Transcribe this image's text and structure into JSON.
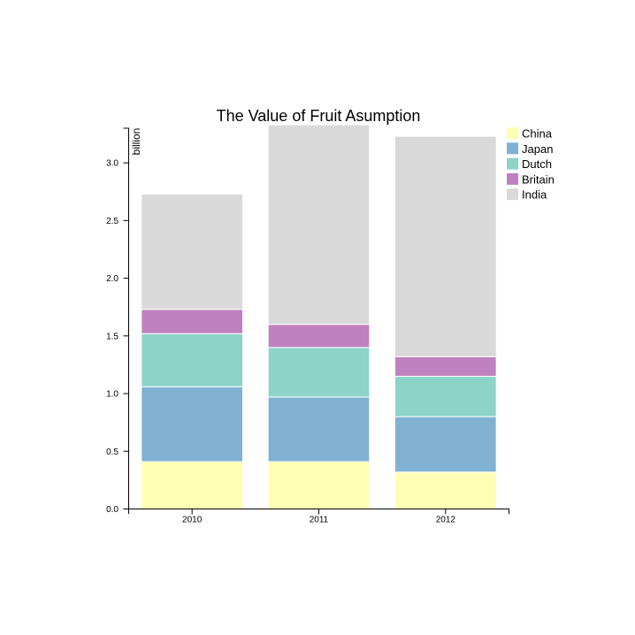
{
  "chart_data": {
    "type": "bar",
    "stacked": true,
    "title": "The Value of Fruit Asumption",
    "xlabel": "",
    "ylabel": "billion",
    "categories": [
      "2010",
      "2011",
      "2012"
    ],
    "ylim": [
      0,
      3.3
    ],
    "yticks": [
      0.0,
      0.5,
      1.0,
      1.5,
      2.0,
      2.5,
      3.0
    ],
    "ytick_labels": [
      "0.0",
      "0.5",
      "1.0",
      "1.5",
      "2.0",
      "2.5",
      "3.0"
    ],
    "legend_position": "top-right",
    "series": [
      {
        "name": "China",
        "color": "#ffffb3",
        "values": [
          0.41,
          0.41,
          0.32
        ]
      },
      {
        "name": "Japan",
        "color": "#80b1d3",
        "values": [
          0.65,
          0.56,
          0.48
        ]
      },
      {
        "name": "Dutch",
        "color": "#8dd3c7",
        "values": [
          0.46,
          0.43,
          0.35
        ]
      },
      {
        "name": "Britain",
        "color": "#bf81bf",
        "values": [
          0.21,
          0.2,
          0.17
        ]
      },
      {
        "name": "India",
        "color": "#d9d9d9",
        "values": [
          1.0,
          1.73,
          1.91
        ]
      }
    ]
  }
}
